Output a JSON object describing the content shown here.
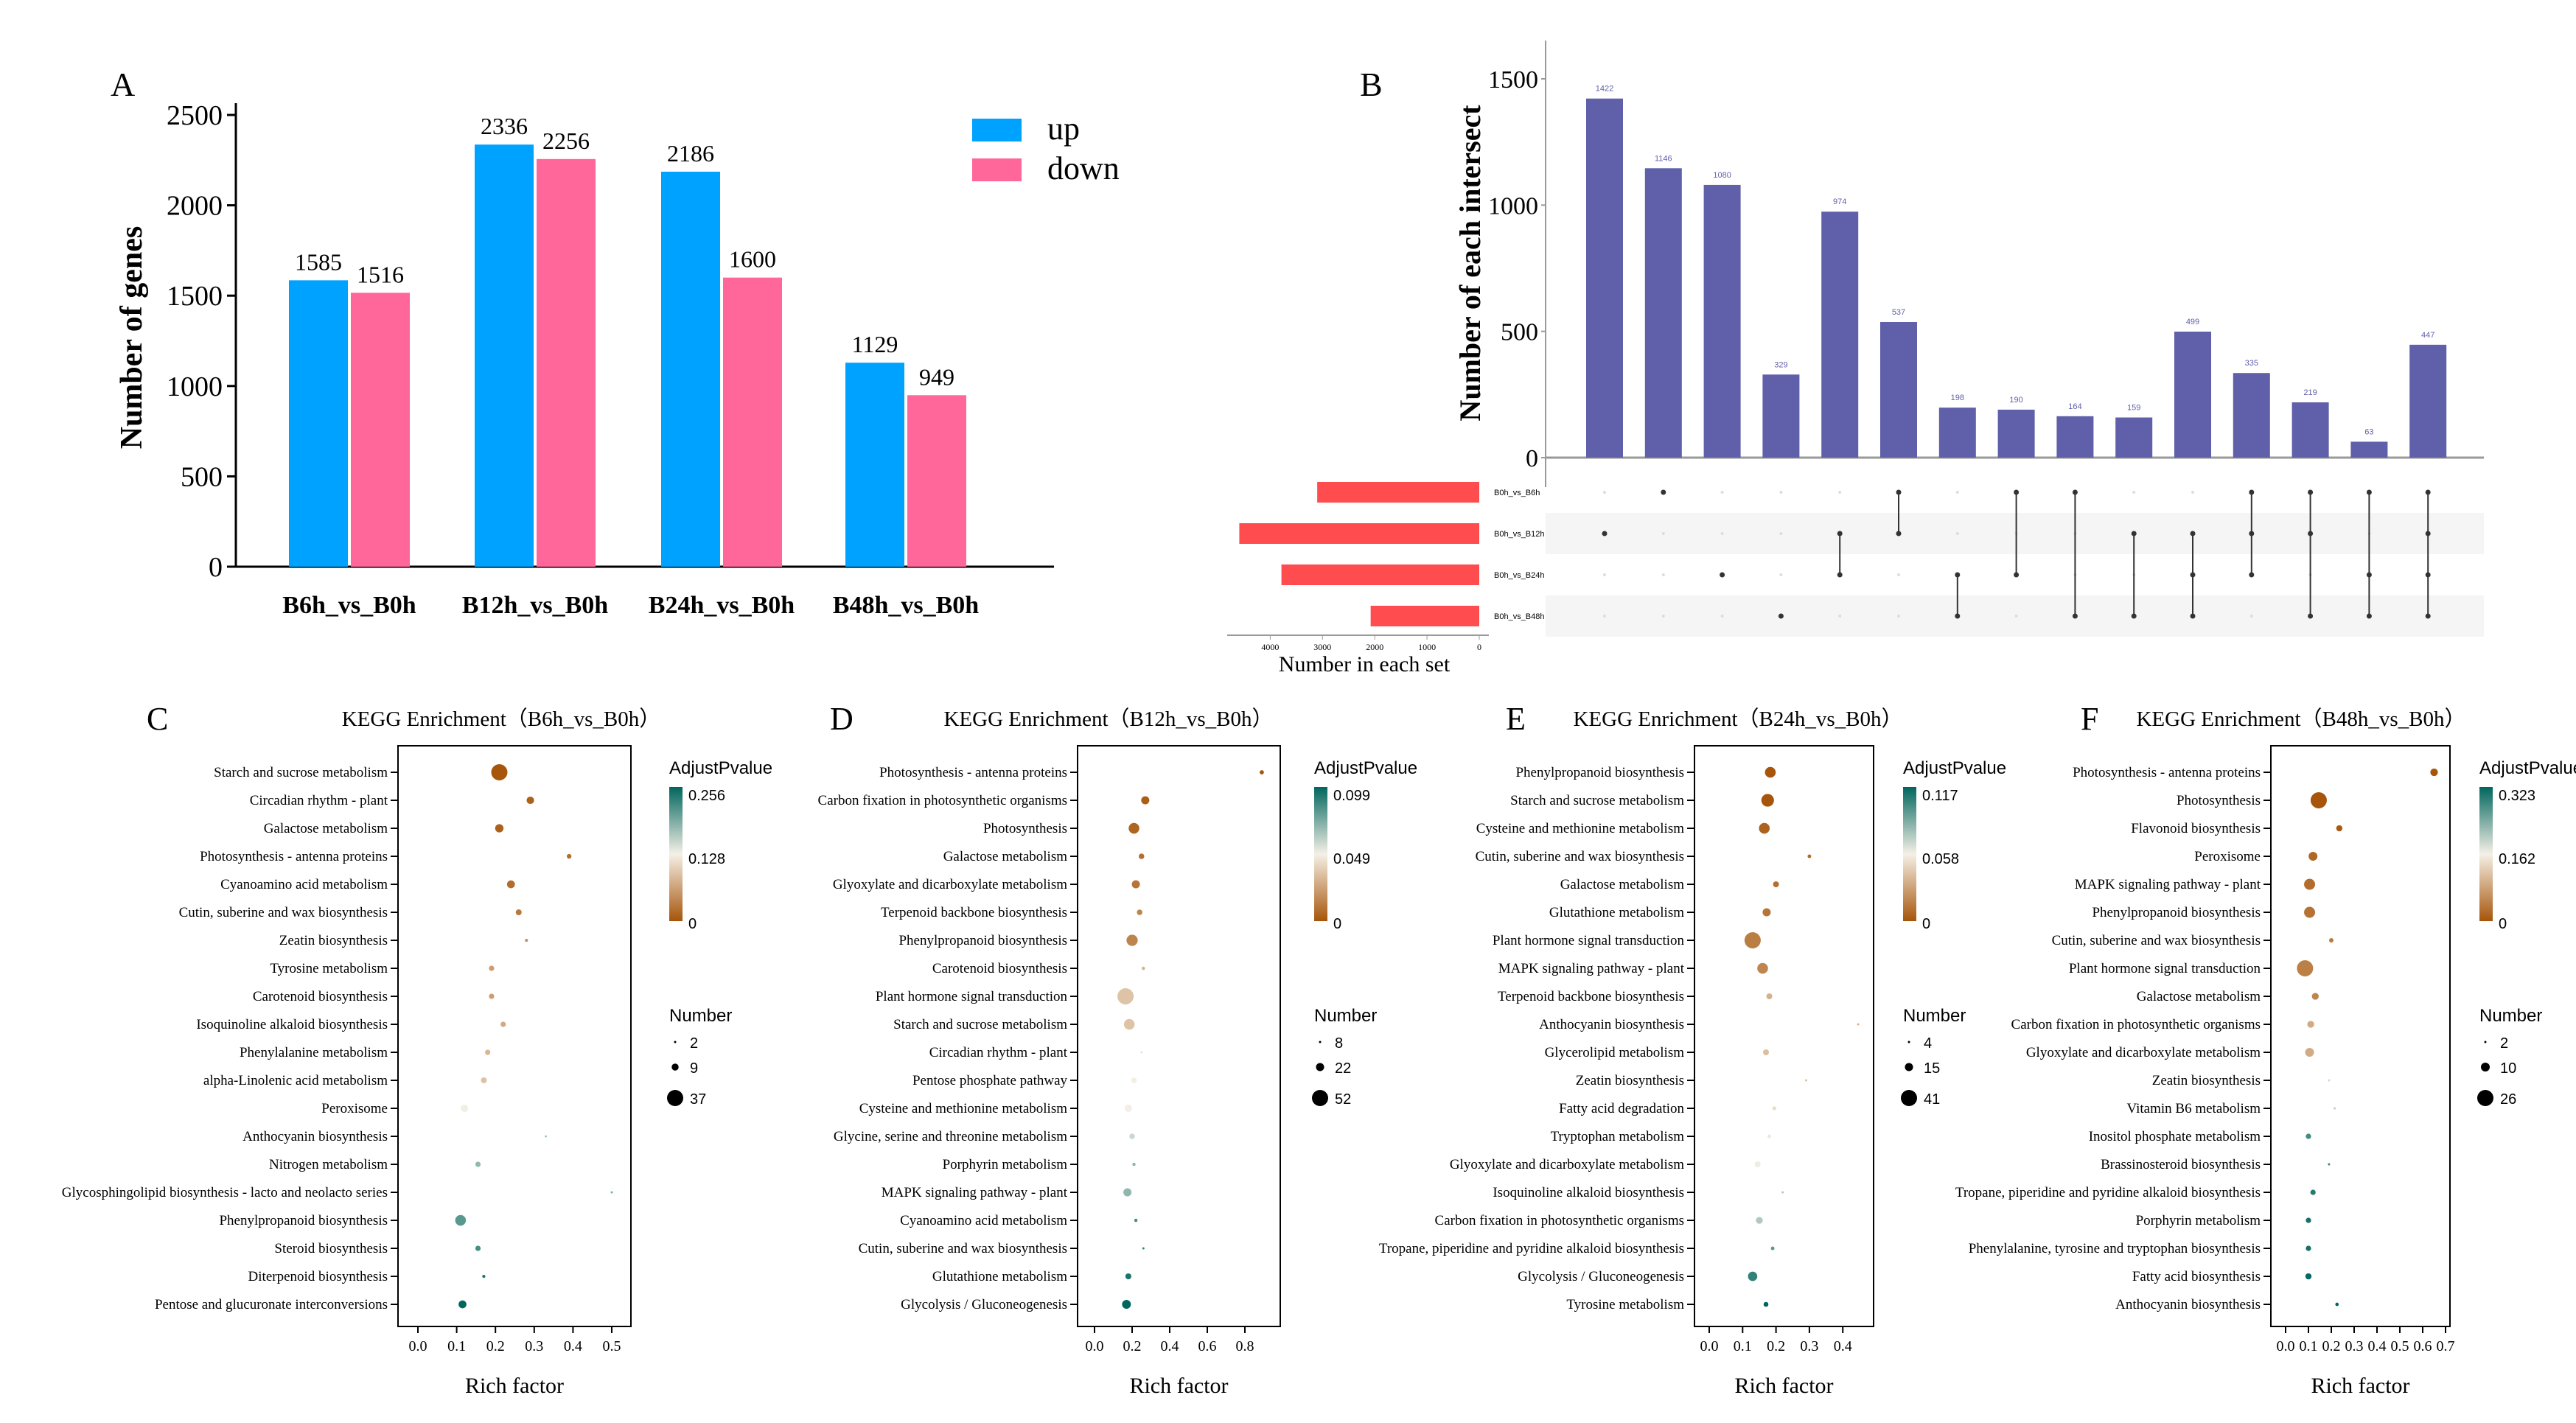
{
  "colors": {
    "up": "#00A2FF",
    "down": "#FF6699",
    "intersect_bar": "#5F5FAA",
    "set_bar": "#FF4D4F",
    "matrix_dot": "#333333",
    "matrix_dot_off": "#DDDDDD",
    "gradient_low": "#A6550A",
    "gradient_mid": "#F5F0E6",
    "gradient_high": "#01665E"
  },
  "chart_data": [
    {
      "panel_label": "A",
      "type": "bar",
      "categories": [
        "B6h_vs_B0h",
        "B12h_vs_B0h",
        "B24h_vs_B0h",
        "B48h_vs_B0h"
      ],
      "series": [
        {
          "name": "up",
          "values": [
            1585,
            2336,
            2186,
            1129
          ]
        },
        {
          "name": "down",
          "values": [
            1516,
            2256,
            1600,
            949
          ]
        }
      ],
      "ylabel": "Number of genes",
      "ylim": [
        0,
        2500
      ],
      "yticks": [
        "0",
        "500",
        "1000",
        "1500",
        "2000",
        "2500"
      ],
      "legend": "top-right",
      "grid": false
    },
    {
      "panel_label": "B",
      "type": "upset",
      "ylabel": "Number of each intersect",
      "ylim": [
        0,
        1500
      ],
      "yticks": [
        "0",
        "500",
        "1000",
        "1500"
      ],
      "sets": [
        {
          "name": "B0h_vs_B6h",
          "size": 3101
        },
        {
          "name": "B0h_vs_B12h",
          "size": 4592
        },
        {
          "name": "B0h_vs_B24h",
          "size": 3786
        },
        {
          "name": "B0h_vs_B48h",
          "size": 2078
        }
      ],
      "set_axis_label": "Number in each set",
      "set_ticks": [
        "4000",
        "3000",
        "2000",
        "1000",
        "0"
      ],
      "intersections": [
        {
          "sets": [
            1
          ],
          "value": 1422,
          "label": "1422"
        },
        {
          "sets": [
            0
          ],
          "value": 1146,
          "label": "1146"
        },
        {
          "sets": [
            2
          ],
          "value": 1080,
          "label": "1080"
        },
        {
          "sets": [
            3
          ],
          "value": 329,
          "label": "329"
        },
        {
          "sets": [
            1,
            2
          ],
          "value": 974,
          "label": "974"
        },
        {
          "sets": [
            0,
            1
          ],
          "value": 537,
          "label": "537"
        },
        {
          "sets": [
            2,
            3
          ],
          "value": 198,
          "label": "198"
        },
        {
          "sets": [
            0,
            2
          ],
          "value": 190,
          "label": "190"
        },
        {
          "sets": [
            0,
            3
          ],
          "value": 164,
          "label": "164"
        },
        {
          "sets": [
            1,
            3
          ],
          "value": 159,
          "label": "159"
        },
        {
          "sets": [
            1,
            2,
            3
          ],
          "value": 499,
          "label": "499"
        },
        {
          "sets": [
            0,
            1,
            2
          ],
          "value": 335,
          "label": "335"
        },
        {
          "sets": [
            0,
            1,
            3
          ],
          "value": 219,
          "label": "219"
        },
        {
          "sets": [
            0,
            2,
            3
          ],
          "value": 63,
          "label": "63"
        },
        {
          "sets": [
            0,
            1,
            2,
            3
          ],
          "value": 447,
          "label": "447"
        }
      ]
    },
    {
      "panel_label": "C",
      "type": "scatter",
      "title": "KEGG Enrichment（B6h_vs_B0h）",
      "xlabel": "Rich factor",
      "xticks": [
        "0.0",
        "0.1",
        "0.2",
        "0.3",
        "0.4",
        "0.5"
      ],
      "color_legend": {
        "title": "AdjustPvalue",
        "max": 0.256,
        "labels": [
          "0.256",
          "0.128",
          "0"
        ]
      },
      "size_legend": {
        "title": "Number",
        "values": [
          2,
          9,
          37
        ],
        "labels": [
          "2",
          "9",
          "37"
        ]
      },
      "points": [
        {
          "pathway": "Starch and sucrose metabolism",
          "rich_factor": 0.21,
          "number": 37,
          "padj": 0.0
        },
        {
          "pathway": "Circadian rhythm - plant",
          "rich_factor": 0.29,
          "number": 10,
          "padj": 0.01
        },
        {
          "pathway": "Galactose metabolism",
          "rich_factor": 0.21,
          "number": 12,
          "padj": 0.01
        },
        {
          "pathway": "Photosynthesis - antenna proteins",
          "rich_factor": 0.39,
          "number": 5,
          "padj": 0.02
        },
        {
          "pathway": "Cyanoamino acid metabolism",
          "rich_factor": 0.24,
          "number": 11,
          "padj": 0.02
        },
        {
          "pathway": "Cutin, suberine and wax biosynthesis",
          "rich_factor": 0.26,
          "number": 7,
          "padj": 0.03
        },
        {
          "pathway": "Zeatin biosynthesis",
          "rich_factor": 0.28,
          "number": 3,
          "padj": 0.05
        },
        {
          "pathway": "Tyrosine metabolism",
          "rich_factor": 0.19,
          "number": 6,
          "padj": 0.06
        },
        {
          "pathway": "Carotenoid biosynthesis",
          "rich_factor": 0.19,
          "number": 6,
          "padj": 0.06
        },
        {
          "pathway": "Isoquinoline alkaloid biosynthesis",
          "rich_factor": 0.22,
          "number": 6,
          "padj": 0.07
        },
        {
          "pathway": "Phenylalanine metabolism",
          "rich_factor": 0.18,
          "number": 6,
          "padj": 0.08
        },
        {
          "pathway": "alpha-Linolenic acid metabolism",
          "rich_factor": 0.17,
          "number": 7,
          "padj": 0.09
        },
        {
          "pathway": "Peroxisome",
          "rich_factor": 0.12,
          "number": 10,
          "padj": 0.13
        },
        {
          "pathway": "Anthocyanin biosynthesis",
          "rich_factor": 0.33,
          "number": 2,
          "padj": 0.17
        },
        {
          "pathway": "Nitrogen metabolism",
          "rich_factor": 0.155,
          "number": 6,
          "padj": 0.18
        },
        {
          "pathway": "Glycosphingolipid biosynthesis - lacto and neolacto series",
          "rich_factor": 0.5,
          "number": 2,
          "padj": 0.19
        },
        {
          "pathway": "Phenylpropanoid biosynthesis",
          "rich_factor": 0.11,
          "number": 18,
          "padj": 0.21
        },
        {
          "pathway": "Steroid biosynthesis",
          "rich_factor": 0.155,
          "number": 6,
          "padj": 0.22
        },
        {
          "pathway": "Diterpenoid biosynthesis",
          "rich_factor": 0.17,
          "number": 3,
          "padj": 0.24
        },
        {
          "pathway": "Pentose and glucuronate interconversions",
          "rich_factor": 0.115,
          "number": 11,
          "padj": 0.256
        }
      ]
    },
    {
      "panel_label": "D",
      "type": "scatter",
      "title": "KEGG Enrichment（B12h_vs_B0h）",
      "xlabel": "Rich factor",
      "xticks": [
        "0.0",
        "0.2",
        "0.4",
        "0.6",
        "0.8"
      ],
      "color_legend": {
        "title": "AdjustPvalue",
        "max": 0.099,
        "labels": [
          "0.099",
          "0.049",
          "0"
        ]
      },
      "size_legend": {
        "title": "Number",
        "values": [
          8,
          22,
          52
        ],
        "labels": [
          "8",
          "22",
          "52"
        ]
      },
      "points": [
        {
          "pathway": "Photosynthesis - antenna proteins",
          "rich_factor": 0.89,
          "number": 12,
          "padj": 0.0
        },
        {
          "pathway": "Carbon fixation in photosynthetic organisms",
          "rich_factor": 0.27,
          "number": 22,
          "padj": 0.003
        },
        {
          "pathway": "Photosynthesis",
          "rich_factor": 0.21,
          "number": 30,
          "padj": 0.005
        },
        {
          "pathway": "Galactose metabolism",
          "rich_factor": 0.25,
          "number": 15,
          "padj": 0.008
        },
        {
          "pathway": "Glyoxylate and dicarboxylate metabolism",
          "rich_factor": 0.22,
          "number": 22,
          "padj": 0.01
        },
        {
          "pathway": "Terpenoid backbone biosynthesis",
          "rich_factor": 0.24,
          "number": 15,
          "padj": 0.015
        },
        {
          "pathway": "Phenylpropanoid biosynthesis",
          "rich_factor": 0.2,
          "number": 32,
          "padj": 0.015
        },
        {
          "pathway": "Carotenoid biosynthesis",
          "rich_factor": 0.26,
          "number": 10,
          "padj": 0.03
        },
        {
          "pathway": "Plant hormone signal transduction",
          "rich_factor": 0.165,
          "number": 52,
          "padj": 0.035
        },
        {
          "pathway": "Starch and sucrose metabolism",
          "rich_factor": 0.185,
          "number": 30,
          "padj": 0.035
        },
        {
          "pathway": "Circadian rhythm - plant",
          "rich_factor": 0.25,
          "number": 8,
          "padj": 0.045
        },
        {
          "pathway": "Pentose phosphate pathway",
          "rich_factor": 0.21,
          "number": 15,
          "padj": 0.05
        },
        {
          "pathway": "Cysteine and methionine metabolism",
          "rich_factor": 0.18,
          "number": 20,
          "padj": 0.05
        },
        {
          "pathway": "Glycine, serine and threonine metabolism",
          "rich_factor": 0.2,
          "number": 15,
          "padj": 0.058
        },
        {
          "pathway": "Porphyrin metabolism",
          "rich_factor": 0.21,
          "number": 10,
          "padj": 0.07
        },
        {
          "pathway": "MAPK signaling pathway - plant",
          "rich_factor": 0.175,
          "number": 22,
          "padj": 0.07
        },
        {
          "pathway": "Cyanoamino acid metabolism",
          "rich_factor": 0.22,
          "number": 10,
          "padj": 0.085
        },
        {
          "pathway": "Cutin, suberine and wax biosynthesis",
          "rich_factor": 0.26,
          "number": 8,
          "padj": 0.088
        },
        {
          "pathway": "Glutathione metabolism",
          "rich_factor": 0.18,
          "number": 16,
          "padj": 0.094
        },
        {
          "pathway": "Glycolysis / Gluconeogenesis",
          "rich_factor": 0.17,
          "number": 24,
          "padj": 0.099
        }
      ]
    },
    {
      "panel_label": "E",
      "type": "scatter",
      "title": "KEGG Enrichment（B24h_vs_B0h）",
      "xlabel": "Rich factor",
      "xticks": [
        "0.0",
        "0.1",
        "0.2",
        "0.3",
        "0.4"
      ],
      "color_legend": {
        "title": "AdjustPvalue",
        "max": 0.117,
        "labels": [
          "0.117",
          "0.058",
          "0"
        ]
      },
      "size_legend": {
        "title": "Number",
        "values": [
          4,
          15,
          41
        ],
        "labels": [
          "4",
          "15",
          "41"
        ]
      },
      "points": [
        {
          "pathway": "Phenylpropanoid biosynthesis",
          "rich_factor": 0.183,
          "number": 22,
          "padj": 0.0
        },
        {
          "pathway": "Starch and sucrose metabolism",
          "rich_factor": 0.175,
          "number": 28,
          "padj": 0.0
        },
        {
          "pathway": "Cysteine and methionine metabolism",
          "rich_factor": 0.165,
          "number": 22,
          "padj": 0.005
        },
        {
          "pathway": "Cutin, suberine and wax biosynthesis",
          "rich_factor": 0.3,
          "number": 6,
          "padj": 0.008
        },
        {
          "pathway": "Galactose metabolism",
          "rich_factor": 0.2,
          "number": 10,
          "padj": 0.01
        },
        {
          "pathway": "Glutathione metabolism",
          "rich_factor": 0.172,
          "number": 15,
          "padj": 0.012
        },
        {
          "pathway": "Plant hormone signal transduction",
          "rich_factor": 0.13,
          "number": 41,
          "padj": 0.015
        },
        {
          "pathway": "MAPK signaling pathway - plant",
          "rich_factor": 0.16,
          "number": 22,
          "padj": 0.018
        },
        {
          "pathway": "Terpenoid backbone biosynthesis",
          "rich_factor": 0.18,
          "number": 10,
          "padj": 0.035
        },
        {
          "pathway": "Anthocyanin biosynthesis",
          "rich_factor": 0.446,
          "number": 4,
          "padj": 0.035
        },
        {
          "pathway": "Glycerolipid metabolism",
          "rich_factor": 0.17,
          "number": 10,
          "padj": 0.04
        },
        {
          "pathway": "Zeatin biosynthesis",
          "rich_factor": 0.29,
          "number": 4,
          "padj": 0.04
        },
        {
          "pathway": "Fatty acid degradation",
          "rich_factor": 0.195,
          "number": 6,
          "padj": 0.05
        },
        {
          "pathway": "Tryptophan metabolism",
          "rich_factor": 0.18,
          "number": 6,
          "padj": 0.055
        },
        {
          "pathway": "Glyoxylate and dicarboxylate metabolism",
          "rich_factor": 0.145,
          "number": 10,
          "padj": 0.06
        },
        {
          "pathway": "Isoquinoline alkaloid biosynthesis",
          "rich_factor": 0.22,
          "number": 4,
          "padj": 0.075
        },
        {
          "pathway": "Carbon fixation in photosynthetic organisms",
          "rich_factor": 0.15,
          "number": 12,
          "padj": 0.075
        },
        {
          "pathway": "Tropane, piperidine and pyridine alkaloid biosynthesis",
          "rich_factor": 0.19,
          "number": 6,
          "padj": 0.095
        },
        {
          "pathway": "Glycolysis / Gluconeogenesis",
          "rich_factor": 0.13,
          "number": 18,
          "padj": 0.105
        },
        {
          "pathway": "Tyrosine metabolism",
          "rich_factor": 0.17,
          "number": 8,
          "padj": 0.117
        }
      ]
    },
    {
      "panel_label": "F",
      "type": "scatter",
      "title": "KEGG Enrichment（B48h_vs_B0h）",
      "xlabel": "Rich factor",
      "xticks": [
        "0.0",
        "0.1",
        "0.2",
        "0.3",
        "0.4",
        "0.5",
        "0.6",
        "0.7"
      ],
      "color_legend": {
        "title": "AdjustPvalue",
        "max": 0.323,
        "labels": [
          "0.323",
          "0.162",
          "0"
        ]
      },
      "size_legend": {
        "title": "Number",
        "values": [
          2,
          10,
          26
        ],
        "labels": [
          "2",
          "10",
          "26"
        ]
      },
      "points": [
        {
          "pathway": "Photosynthesis - antenna proteins",
          "rich_factor": 0.65,
          "number": 8,
          "padj": 0.0
        },
        {
          "pathway": "Photosynthesis",
          "rich_factor": 0.145,
          "number": 26,
          "padj": 0.0
        },
        {
          "pathway": "Flavonoid biosynthesis",
          "rich_factor": 0.235,
          "number": 6,
          "padj": 0.005
        },
        {
          "pathway": "Peroxisome",
          "rich_factor": 0.12,
          "number": 10,
          "padj": 0.02
        },
        {
          "pathway": "MAPK signaling pathway - plant",
          "rich_factor": 0.105,
          "number": 14,
          "padj": 0.025
        },
        {
          "pathway": "Phenylpropanoid biosynthesis",
          "rich_factor": 0.105,
          "number": 14,
          "padj": 0.03
        },
        {
          "pathway": "Cutin, suberine and wax biosynthesis",
          "rich_factor": 0.2,
          "number": 4,
          "padj": 0.04
        },
        {
          "pathway": "Plant hormone signal transduction",
          "rich_factor": 0.085,
          "number": 26,
          "padj": 0.045
        },
        {
          "pathway": "Galactose metabolism",
          "rich_factor": 0.13,
          "number": 7,
          "padj": 0.05
        },
        {
          "pathway": "Carbon fixation in photosynthetic organisms",
          "rich_factor": 0.11,
          "number": 7,
          "padj": 0.09
        },
        {
          "pathway": "Glyoxylate and dicarboxylate metabolism",
          "rich_factor": 0.105,
          "number": 10,
          "padj": 0.09
        },
        {
          "pathway": "Zeatin biosynthesis",
          "rich_factor": 0.19,
          "number": 2,
          "padj": 0.13
        },
        {
          "pathway": "Vitamin B6 metabolism",
          "rich_factor": 0.215,
          "number": 2,
          "padj": 0.2
        },
        {
          "pathway": "Inositol phosphate metabolism",
          "rich_factor": 0.1,
          "number": 5,
          "padj": 0.28
        },
        {
          "pathway": "Brassinosteroid biosynthesis",
          "rich_factor": 0.19,
          "number": 2,
          "padj": 0.29
        },
        {
          "pathway": "Tropane, piperidine and pyridine alkaloid biosynthesis",
          "rich_factor": 0.12,
          "number": 5,
          "padj": 0.3
        },
        {
          "pathway": "Porphyrin metabolism",
          "rich_factor": 0.1,
          "number": 5,
          "padj": 0.31
        },
        {
          "pathway": "Phenylalanine, tyrosine and tryptophan biosynthesis",
          "rich_factor": 0.1,
          "number": 5,
          "padj": 0.31
        },
        {
          "pathway": "Fatty acid biosynthesis",
          "rich_factor": 0.1,
          "number": 6,
          "padj": 0.32
        },
        {
          "pathway": "Anthocyanin biosynthesis",
          "rich_factor": 0.225,
          "number": 3,
          "padj": 0.323
        }
      ]
    }
  ]
}
